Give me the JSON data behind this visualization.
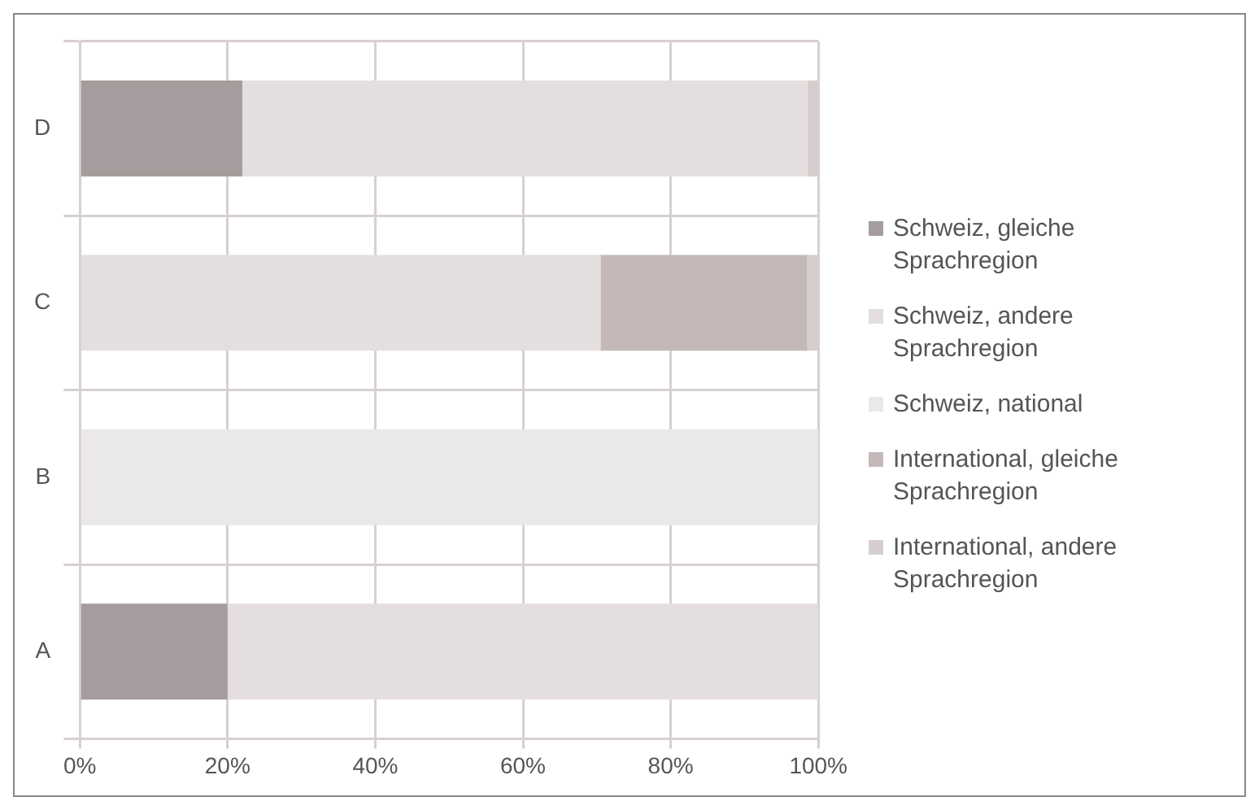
{
  "chart_data": {
    "type": "bar",
    "orientation": "horizontal",
    "stacked": true,
    "categories": [
      "D",
      "C",
      "B",
      "A"
    ],
    "series": [
      {
        "name": "Schweiz, gleiche Sprachregion",
        "color": "#a59d9d",
        "values": [
          22,
          0,
          0,
          20
        ]
      },
      {
        "name": "Schweiz, andere Sprachregion",
        "color": "#e4dede",
        "values": [
          76.5,
          70.5,
          0,
          80
        ]
      },
      {
        "name": "Schweiz, national",
        "color": "#ebe8e8",
        "values": [
          0,
          0,
          100,
          0
        ]
      },
      {
        "name": "International, gleiche Sprachregion",
        "color": "#c4b8b8",
        "values": [
          0,
          28,
          0,
          0
        ]
      },
      {
        "name": "International, andere Sprachregion",
        "color": "#d6cece",
        "values": [
          1.5,
          1.5,
          0,
          0
        ]
      }
    ],
    "xlim": [
      0,
      100
    ],
    "xticks": [
      {
        "value": 0,
        "label": "0%"
      },
      {
        "value": 20,
        "label": "20%"
      },
      {
        "value": 40,
        "label": "40%"
      },
      {
        "value": 60,
        "label": "60%"
      },
      {
        "value": 80,
        "label": "80%"
      },
      {
        "value": 100,
        "label": "100%"
      }
    ],
    "grid": true,
    "legend": "right"
  }
}
